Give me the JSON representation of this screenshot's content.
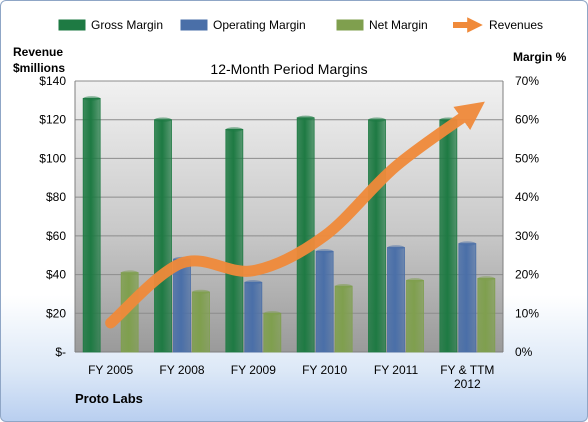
{
  "chart_data": {
    "type": "bar",
    "title": "12-Month Period Margins",
    "company": "Proto Labs",
    "ylabel_left": [
      "Revenue",
      "$millions"
    ],
    "ylabel_right": "Margin %",
    "categories": [
      [
        "FY 2005"
      ],
      [
        "FY 2008"
      ],
      [
        "FY 2009"
      ],
      [
        "FY 2010"
      ],
      [
        "FY 2011"
      ],
      [
        "FY & TTM",
        "2012"
      ]
    ],
    "ylim_left": [
      0,
      140
    ],
    "ylim_right": [
      0,
      70
    ],
    "left_ticks": [
      "$-",
      "$20",
      "$40",
      "$60",
      "$80",
      "$100",
      "$120",
      "$140"
    ],
    "right_ticks": [
      "0%",
      "10%",
      "20%",
      "30%",
      "40%",
      "50%",
      "60%",
      "70%"
    ],
    "series": [
      {
        "name": "Gross Margin",
        "axis": "right",
        "color": "#1e7a43",
        "values": [
          65.5,
          60,
          57.5,
          60.5,
          60,
          60
        ]
      },
      {
        "name": "Operating Margin",
        "axis": "right",
        "color": "#4a6fa8",
        "values": [
          null,
          24,
          18,
          26,
          27,
          28
        ]
      },
      {
        "name": "Net Margin",
        "axis": "right",
        "color": "#7f9f4e",
        "values": [
          20.5,
          15.5,
          10,
          17,
          18.5,
          19
        ]
      },
      {
        "name": "Revenues",
        "axis": "left",
        "type": "line",
        "color": "#f08a3a",
        "values": [
          15,
          46,
          42,
          60,
          96,
          125
        ]
      }
    ],
    "legend_position": "top",
    "grid": true
  }
}
